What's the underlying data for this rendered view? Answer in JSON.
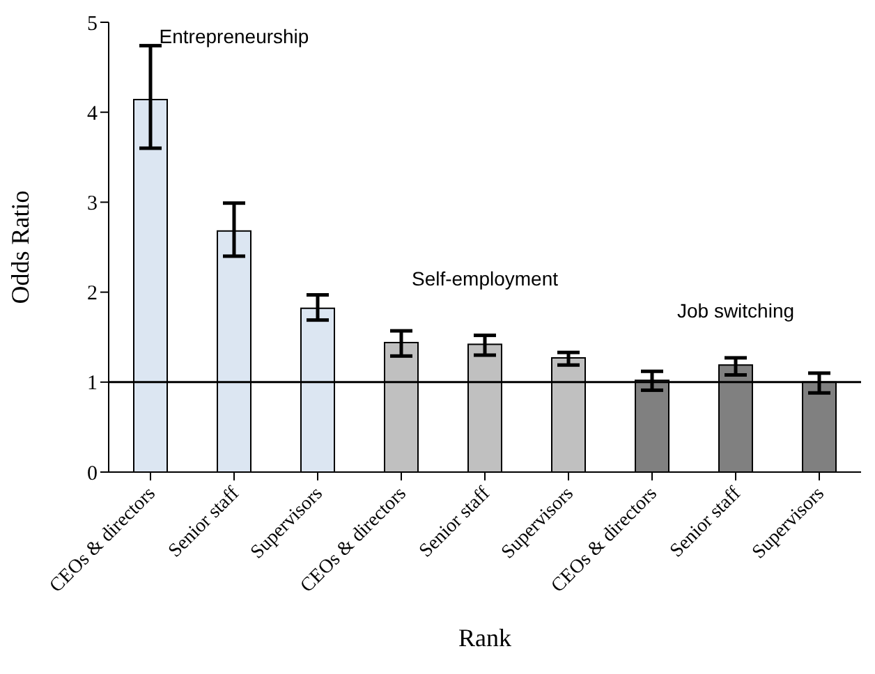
{
  "chart_data": {
    "type": "bar",
    "xlabel": "Rank",
    "ylabel": "Odds Ratio",
    "categories": [
      "CEOs & directors",
      "Senior staff",
      "Supervisors",
      "CEOs & directors",
      "Senior staff",
      "Supervisors",
      "CEOs & directors",
      "Senior staff",
      "Supervisors"
    ],
    "values": [
      4.14,
      2.68,
      1.82,
      1.44,
      1.42,
      1.27,
      1.02,
      1.19,
      1.0
    ],
    "errors": [
      [
        3.6,
        4.74
      ],
      [
        2.4,
        2.99
      ],
      [
        1.69,
        1.97
      ],
      [
        1.29,
        1.57
      ],
      [
        1.3,
        1.52
      ],
      [
        1.19,
        1.33
      ],
      [
        0.91,
        1.12
      ],
      [
        1.08,
        1.27
      ],
      [
        0.88,
        1.1
      ]
    ],
    "colors": [
      "#dce6f2",
      "#dce6f2",
      "#dce6f2",
      "#c0c0c0",
      "#c0c0c0",
      "#c0c0c0",
      "#808080",
      "#808080",
      "#808080"
    ],
    "ylim": [
      0,
      5
    ],
    "yticks": [
      0,
      1,
      2,
      3,
      4,
      5
    ],
    "ref_lines": [
      {
        "axis": "y",
        "value": 1,
        "color": "#000000"
      }
    ],
    "annotations": [
      "Entrepreneurship",
      "Self-employment",
      "Job switching"
    ]
  }
}
